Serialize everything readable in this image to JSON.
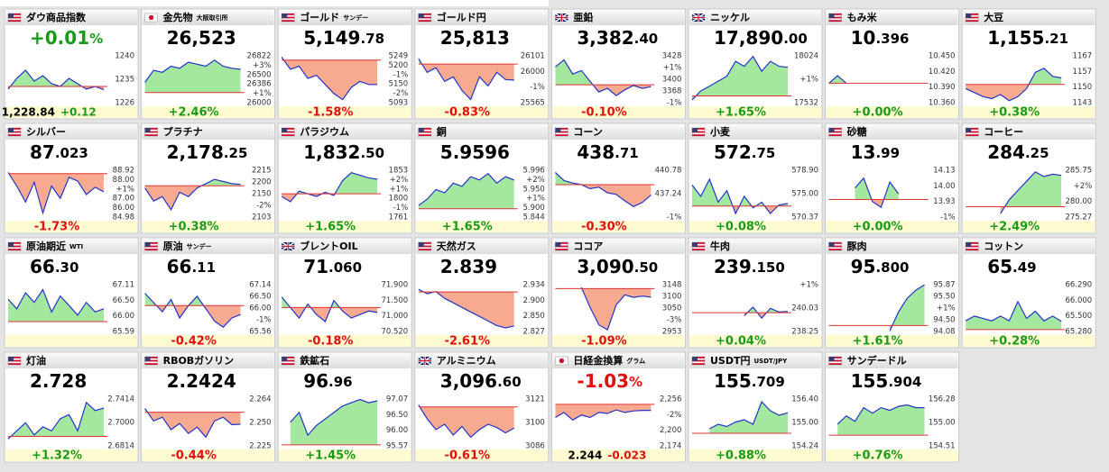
{
  "tiles": [
    {
      "name": "ダウ商品指数",
      "flag": "us",
      "price": [
        "+0.01",
        "%"
      ],
      "foot": [
        "1,228.84",
        "+0.12"
      ],
      "labels": [
        "1240",
        "1235",
        "1226"
      ],
      "ylim": [
        1224,
        1242
      ],
      "base": 1230,
      "line": [
        1229,
        1233,
        1236,
        1232,
        1234,
        1231,
        1230,
        1233,
        1231,
        1229,
        1230,
        1228.8
      ]
    },
    {
      "name": "金先物",
      "sub": "大阪取引所",
      "flag": "jp",
      "price": [
        "26,523",
        ""
      ],
      "change": "+2.46%",
      "labels": [
        "26822",
        "+3%",
        "26500",
        "26386",
        "+1%",
        "26000"
      ],
      "ylim": [
        25700,
        26900
      ],
      "base": 25950,
      "line": [
        26200,
        26500,
        26450,
        26600,
        26550,
        26700,
        26650,
        26600,
        26750,
        26600,
        26550,
        26523
      ]
    },
    {
      "name": "ゴールド",
      "sub": "サンデー",
      "flag": "us",
      "price": [
        "5,149",
        ".78"
      ],
      "change": "-1.58%",
      "labels": [
        "5249",
        "5200",
        "-1%",
        "5150",
        "-2%",
        "5093"
      ],
      "ylim": [
        5090,
        5250
      ],
      "base": 5230,
      "line": [
        5240,
        5200,
        5210,
        5170,
        5180,
        5150,
        5120,
        5100,
        5140,
        5160,
        5150,
        5149.78
      ]
    },
    {
      "name": "ゴールド円",
      "flag": "us",
      "price": [
        "25,813",
        ""
      ],
      "change": "-0.83%",
      "labels": [
        "26101",
        "26000",
        "-1%",
        "25565"
      ],
      "ylim": [
        25565,
        26101
      ],
      "base": 25990,
      "line": [
        26050,
        25900,
        25950,
        25800,
        25850,
        25700,
        25600,
        25850,
        25750,
        25900,
        25820,
        25813
      ]
    },
    {
      "name": "亜鉛",
      "flag": "gb",
      "price": [
        "3,382",
        ".40"
      ],
      "change": "-0.10%",
      "labels": [
        "3428",
        "+1%",
        "3400",
        "3368",
        "-1%"
      ],
      "ylim": [
        3360,
        3428
      ],
      "base": 3385,
      "line": [
        3410,
        3420,
        3400,
        3405,
        3390,
        3375,
        3380,
        3370,
        3378,
        3384,
        3380,
        3382.4
      ]
    },
    {
      "name": "ニッケル",
      "flag": "gb",
      "price": [
        "17,890",
        ".00"
      ],
      "change": "+1.65%",
      "labels": [
        "18024",
        "+1%",
        "17532"
      ],
      "ylim": [
        17532,
        18024
      ],
      "base": 17600,
      "line": [
        17560,
        17650,
        17700,
        17750,
        17800,
        17950,
        17900,
        18000,
        17850,
        17950,
        17900,
        17890
      ]
    },
    {
      "name": "もみ米",
      "flag": "us",
      "price": [
        "10",
        ".396"
      ],
      "change": "+0.00%",
      "labels": [
        "10.450",
        "10.420",
        "10.390",
        "10.360"
      ],
      "ylim": [
        10.36,
        10.45
      ],
      "base": 10.396,
      "line": [
        10.396,
        10.41,
        10.396,
        null,
        null,
        null,
        null,
        null,
        null,
        null,
        null,
        null
      ]
    },
    {
      "name": "大豆",
      "flag": "us",
      "price": [
        "1,155",
        ".21"
      ],
      "change": "+0.38%",
      "labels": [
        "1167",
        "1157",
        "1150",
        "1143"
      ],
      "ylim": [
        1143,
        1167
      ],
      "base": 1152,
      "line": [
        1150,
        1148,
        1146,
        1145,
        1147,
        1144,
        1146,
        1150,
        1158,
        1160,
        1156,
        1155.21
      ]
    },
    {
      "name": "シルバー",
      "flag": "us",
      "price": [
        "87",
        ".023"
      ],
      "change": "-1.73%",
      "labels": [
        "88.92",
        "88.00",
        "+1%",
        "87.00",
        "86.00",
        "84.98"
      ],
      "ylim": [
        84.98,
        88.92
      ],
      "base": 88.5,
      "line": [
        88.6,
        87.5,
        86.2,
        87.8,
        85.3,
        87.5,
        86.5,
        88.2,
        87.9,
        86.8,
        87.4,
        87.023
      ]
    },
    {
      "name": "プラチナ",
      "flag": "us",
      "price": [
        "2,178",
        ".25"
      ],
      "change": "+0.38%",
      "labels": [
        "2215",
        "2200",
        "2150",
        "-2%",
        "2103"
      ],
      "ylim": [
        2103,
        2215
      ],
      "base": 2175,
      "line": [
        2170,
        2140,
        2150,
        2120,
        2160,
        2150,
        2170,
        2180,
        2190,
        2185,
        2180,
        2178.25
      ]
    },
    {
      "name": "パラジウム",
      "flag": "us",
      "price": [
        "1,832",
        ".50"
      ],
      "change": "+1.65%",
      "labels": [
        "1853",
        "+2%",
        "+1%",
        "1800",
        "-1%",
        "1761"
      ],
      "ylim": [
        1761,
        1853
      ],
      "base": 1805,
      "line": [
        1800,
        1790,
        1810,
        1805,
        1800,
        1808,
        1802,
        1830,
        1845,
        1840,
        1835,
        1832.5
      ]
    },
    {
      "name": "銅",
      "flag": "us",
      "price": [
        "5.9596",
        ""
      ],
      "change": "+1.65%",
      "labels": [
        "5.996",
        "+2%",
        "5.950",
        "+1%",
        "5.900",
        "5.844"
      ],
      "ylim": [
        5.844,
        5.996
      ],
      "base": 5.87,
      "line": [
        5.88,
        5.9,
        5.93,
        5.92,
        5.95,
        5.94,
        5.97,
        5.96,
        5.98,
        5.95,
        5.97,
        5.9596
      ]
    },
    {
      "name": "コーン",
      "flag": "us",
      "price": [
        "438",
        ".71"
      ],
      "change": "-0.30%",
      "labels": [
        "440.78",
        "437.24",
        "-1%"
      ],
      "ylim": [
        436,
        442
      ],
      "base": 440,
      "line": [
        441.5,
        440.5,
        440.2,
        440,
        439.5,
        439.7,
        439,
        438.8,
        438,
        437.3,
        437.8,
        438.71
      ]
    },
    {
      "name": "小麦",
      "flag": "us",
      "price": [
        "572",
        ".75"
      ],
      "change": "+0.08%",
      "labels": [
        "578.90",
        "575.00",
        "570.37"
      ],
      "ylim": [
        570.37,
        578.9
      ],
      "base": 572.3,
      "line": [
        576,
        574,
        577,
        573,
        575,
        571,
        574,
        572,
        573,
        571,
        572.5,
        572.75
      ]
    },
    {
      "name": "砂糖",
      "flag": "us",
      "price": [
        "13",
        ".99"
      ],
      "change": "+0.00%",
      "labels": [
        "14.13",
        "14.00",
        "13.93",
        "-1%"
      ],
      "ylim": [
        13.9,
        14.15
      ],
      "base": 13.99,
      "line": [
        null,
        null,
        null,
        14.05,
        14.1,
        13.98,
        13.95,
        14.08,
        14.02,
        null,
        null,
        null
      ]
    },
    {
      "name": "コーヒー",
      "flag": "us",
      "price": [
        "284",
        ".25"
      ],
      "change": "+2.49%",
      "labels": [
        "285.75",
        "+2%",
        "280.00",
        "275.27"
      ],
      "ylim": [
        275.27,
        285.75
      ],
      "base": 277.5,
      "line": [
        null,
        null,
        null,
        null,
        276,
        279,
        281,
        283,
        285,
        284,
        284.5,
        284.25
      ]
    },
    {
      "name": "原油期近",
      "sub": "WTI",
      "flag": "us",
      "price": [
        "66",
        ".30"
      ],
      "labels": [
        "67.11",
        "66.50",
        "66.00",
        "65.59"
      ],
      "ylim": [
        65.59,
        67.11
      ],
      "base": 65.9,
      "line": [
        66.6,
        66.3,
        66.8,
        66.5,
        66.9,
        66.2,
        66.7,
        66.4,
        66.1,
        66.5,
        66.2,
        66.3
      ]
    },
    {
      "name": "原油",
      "sub": "サンデー",
      "flag": "us",
      "price": [
        "66",
        ".11"
      ],
      "change": "-0.42%",
      "labels": [
        "67.14",
        "66.50",
        "66.00",
        "-1%",
        "65.56"
      ],
      "ylim": [
        65.56,
        67.14
      ],
      "base": 66.4,
      "line": [
        66.8,
        66.5,
        66.2,
        66.6,
        66,
        66.4,
        66.7,
        66.3,
        65.9,
        65.7,
        66,
        66.11
      ]
    },
    {
      "name": "ブレントOIL",
      "flag": "gb",
      "price": [
        "71",
        ".060"
      ],
      "change": "-0.18%",
      "labels": [
        "71.900",
        "71.500",
        "71.000",
        "70.520"
      ],
      "ylim": [
        70.52,
        71.9
      ],
      "base": 71.2,
      "line": [
        71.5,
        71.2,
        70.9,
        71.3,
        71,
        70.8,
        71.4,
        71.1,
        70.9,
        71,
        71.1,
        71.06
      ]
    },
    {
      "name": "天然ガス",
      "flag": "us",
      "price": [
        "2.839",
        ""
      ],
      "change": "-2.61%",
      "labels": [
        "2.934",
        "2.900",
        "2.850",
        "2.827"
      ],
      "ylim": [
        2.827,
        2.934
      ],
      "base": 2.914,
      "line": [
        2.92,
        2.91,
        2.915,
        2.9,
        2.89,
        2.88,
        2.87,
        2.86,
        2.85,
        2.84,
        2.835,
        2.839
      ]
    },
    {
      "name": "ココア",
      "flag": "us",
      "price": [
        "3,090",
        ".50"
      ],
      "change": "-1.09%",
      "labels": [
        "3148",
        "3100",
        "3050",
        "-3%",
        "2953"
      ],
      "ylim": [
        2953,
        3148
      ],
      "base": 3125,
      "line": [
        null,
        null,
        null,
        3130,
        3050,
        2980,
        2960,
        3060,
        3100,
        3090,
        3095,
        3090.5
      ]
    },
    {
      "name": "牛肉",
      "flag": "us",
      "price": [
        "239",
        ".150"
      ],
      "change": "+0.04%",
      "labels": [
        "+1%",
        "240.03",
        "238.25"
      ],
      "ylim": [
        237.5,
        241.5
      ],
      "base": 239.05,
      "line": [
        null,
        null,
        null,
        null,
        null,
        null,
        238.8,
        239.5,
        238.6,
        239.4,
        239.1,
        239.15
      ]
    },
    {
      "name": "豚肉",
      "flag": "us",
      "price": [
        "95",
        ".800"
      ],
      "change": "+1.61%",
      "labels": [
        "95.87",
        "95.50",
        "+1%",
        "94.50",
        "94.08"
      ],
      "ylim": [
        94.08,
        95.87
      ],
      "base": 94.3,
      "line": [
        null,
        null,
        null,
        null,
        null,
        null,
        null,
        94.1,
        94.8,
        95.3,
        95.6,
        95.8
      ]
    },
    {
      "name": "コットン",
      "flag": "us",
      "price": [
        "65",
        ".49"
      ],
      "change": "+0.28%",
      "labels": [
        "66.290",
        "66.000",
        "65.500",
        "65.280"
      ],
      "ylim": [
        65.28,
        66.29
      ],
      "base": 65.32,
      "line": [
        65.5,
        65.6,
        65.55,
        65.5,
        65.6,
        65.5,
        65.9,
        65.55,
        65.7,
        65.5,
        65.6,
        65.49
      ]
    },
    {
      "name": "灯油",
      "flag": "us",
      "price": [
        "2.728",
        ""
      ],
      "change": "+1.32%",
      "labels": [
        "2.7414",
        "2.7000",
        "2.6814"
      ],
      "ylim": [
        2.6814,
        2.7414
      ],
      "base": 2.693,
      "line": [
        2.69,
        2.7,
        2.71,
        2.695,
        2.705,
        2.7,
        2.715,
        2.72,
        2.7,
        2.735,
        2.725,
        2.728
      ]
    },
    {
      "name": "RBOBガソリン",
      "flag": "us",
      "price": [
        "2.2424",
        ""
      ],
      "change": "-0.44%",
      "labels": [
        "2.264",
        "2.250",
        "2.225"
      ],
      "ylim": [
        2.225,
        2.264
      ],
      "base": 2.252,
      "line": [
        2.255,
        2.245,
        2.248,
        2.238,
        2.243,
        2.235,
        2.24,
        2.232,
        2.245,
        2.248,
        2.242,
        2.2424
      ]
    },
    {
      "name": "鉄鉱石",
      "flag": "us",
      "price": [
        "96",
        ".96"
      ],
      "change": "+1.45%",
      "labels": [
        "97.07",
        "96.50",
        "96.00",
        "95.57"
      ],
      "ylim": [
        95.57,
        97.07
      ],
      "base": 95.6,
      "line": [
        null,
        96.3,
        96.6,
        95.9,
        96.2,
        96.4,
        96.6,
        96.8,
        96.9,
        97,
        96.9,
        96.96
      ]
    },
    {
      "name": "アルミニウム",
      "flag": "gb",
      "price": [
        "3,096",
        ".60"
      ],
      "change": "-0.61%",
      "labels": [
        "3121",
        "3100",
        "3086"
      ],
      "ylim": [
        3080,
        3125
      ],
      "base": 3116,
      "line": [
        3118,
        3105,
        3095,
        3100,
        3090,
        3098,
        3088,
        3095,
        3100,
        3097,
        3092,
        3096.6
      ]
    },
    {
      "name": "日経金換算",
      "sub": "グラム",
      "flag": "jp",
      "price": [
        "-1.03",
        "%"
      ],
      "foot": [
        "2.244",
        "-0.023"
      ],
      "labels": [
        "2,256",
        "-2%",
        "2,200",
        "2,174"
      ],
      "ylim": [
        2174,
        2270
      ],
      "base": 2256,
      "line": [
        2230,
        2240,
        2225,
        2235,
        2230,
        2240,
        2238,
        2245,
        2240,
        2243,
        2244,
        2244
      ]
    },
    {
      "name": "USDT円",
      "sub": "USDT/JPY",
      "flag": "us",
      "price": [
        "155",
        ".709"
      ],
      "change": "+0.88%",
      "labels": [
        "156.40",
        "155.00",
        "154.24"
      ],
      "ylim": [
        154.24,
        156.4
      ],
      "base": 154.8,
      "line": [
        null,
        null,
        155,
        155.2,
        155.1,
        155.3,
        155.4,
        155.2,
        156.2,
        155.8,
        155.6,
        155.709
      ]
    },
    {
      "name": "サンデードル",
      "flag": "us",
      "price": [
        "155",
        ".904"
      ],
      "change": "+0.76%",
      "labels": [
        "156.28",
        "155.00",
        "154.51"
      ],
      "ylim": [
        154.51,
        156.28
      ],
      "base": 154.9,
      "line": [
        null,
        155.3,
        155.6,
        155.4,
        155.9,
        155.7,
        155.9,
        155.8,
        155.95,
        156,
        155.9,
        155.904
      ]
    }
  ]
}
